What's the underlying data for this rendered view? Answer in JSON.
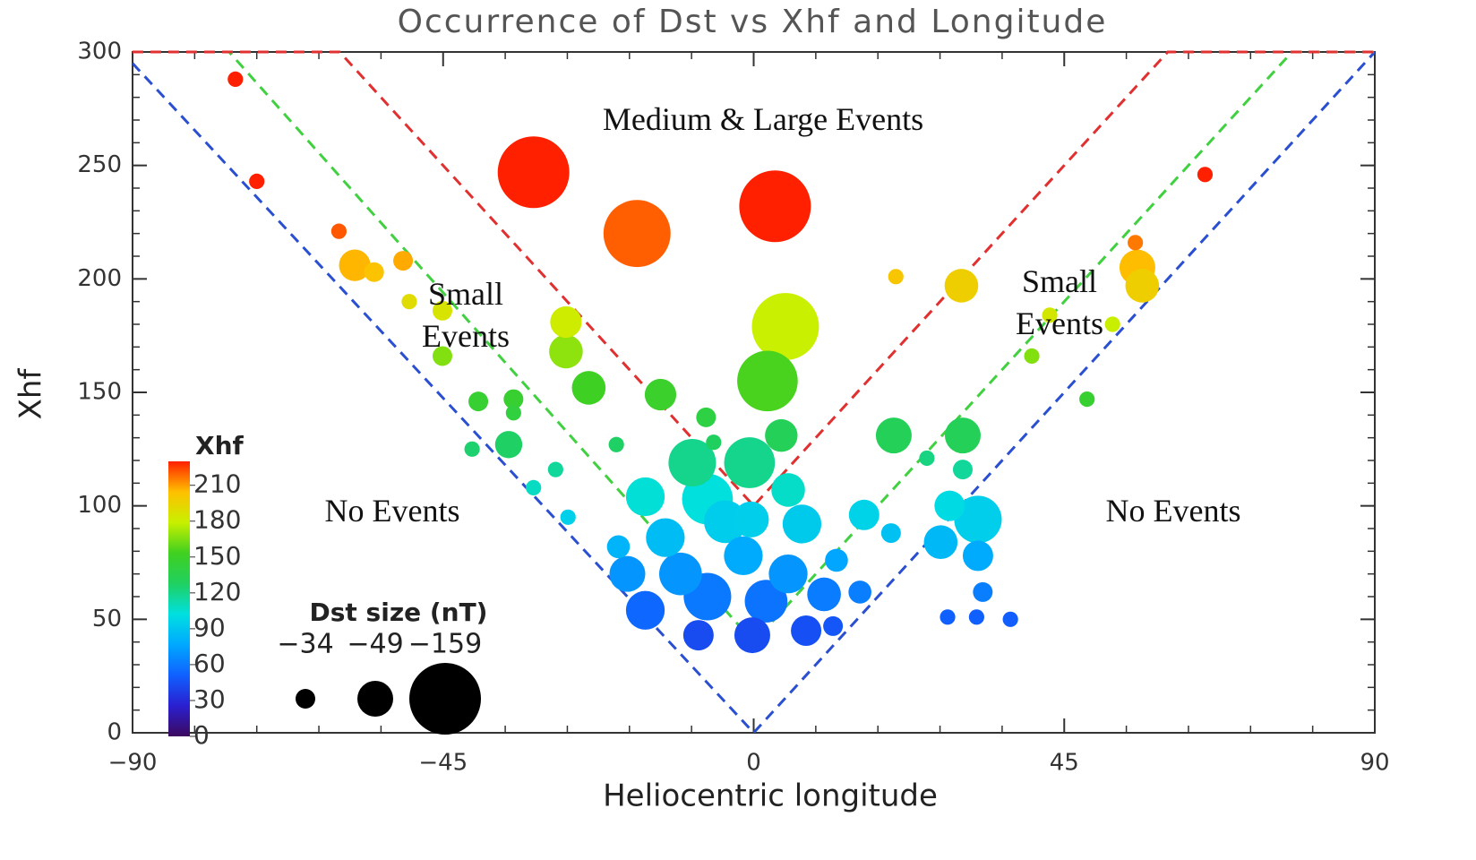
{
  "chart_data": {
    "type": "bubble",
    "title": "Occurrence of Dst vs Xhf and Longitude",
    "x_label": "Heliocentric longitude",
    "y_label": "Xhf",
    "xlim": [
      -90,
      90
    ],
    "xticks": [
      {
        "value": -90,
        "label": "−90"
      },
      {
        "value": -45,
        "label": "−45"
      },
      0,
      45,
      90
    ],
    "ylim": [
      0,
      300
    ],
    "yticks": [
      0,
      50,
      100,
      150,
      200,
      250,
      300
    ],
    "x": [
      -75.1,
      -72,
      -60.1,
      -57.8,
      -55,
      -50.8,
      -49.9,
      -45.1,
      -45.1,
      -39.9,
      -34.8,
      -34.8,
      -35.5,
      -40.8,
      -31.9,
      -28.7,
      -26.9,
      -31.9,
      -16.9,
      3.1,
      -27.2,
      -27.2,
      -23.9,
      -19.9,
      -13.5,
      -6.9,
      -5.8,
      4.6,
      2.0,
      4.0,
      -8.9,
      -0.6,
      -15.7,
      -6.7,
      5,
      -12.8,
      -4.1,
      -0.4,
      7,
      -19.6,
      -18.3,
      -10.6,
      -1.5,
      5,
      12,
      -15.7,
      -6.7,
      1.8,
      10.2,
      15.4,
      -8,
      -0.2,
      7.6,
      11.5,
      16,
      19.9,
      20.6,
      20.3,
      25.1,
      30.1,
      30.3,
      30.3,
      28.4,
      32.5,
      27.1,
      32.5,
      33.2,
      28.1,
      32.3,
      37.2,
      40.3,
      42.9,
      48.3,
      52,
      55.3,
      55.6,
      56.3,
      65.4
    ],
    "y": [
      288,
      243,
      221,
      206,
      203,
      208,
      190,
      186,
      166,
      146,
      147,
      141,
      127,
      125,
      108,
      116,
      95,
      247,
      220,
      232,
      181,
      168,
      152,
      127,
      149,
      139,
      128,
      179,
      155,
      131,
      119,
      119,
      104,
      103,
      107,
      86,
      93,
      94,
      92,
      82,
      70,
      70,
      78,
      70,
      76,
      54,
      60,
      58,
      61,
      62,
      43,
      43,
      45,
      47,
      96,
      88,
      201,
      131,
      121,
      197,
      131,
      116,
      100,
      94,
      84,
      78,
      62,
      51,
      51,
      50,
      166,
      184,
      147,
      180,
      216,
      205,
      197,
      246
    ],
    "sizes": [
      -30,
      -30,
      -30,
      -45,
      -34,
      -34,
      -30,
      -34,
      -34,
      -34,
      -34,
      -30,
      -41,
      -30,
      -30,
      -30,
      -30,
      -159,
      -145,
      -159,
      -45,
      -47,
      -47,
      -30,
      -45,
      -34,
      -30,
      -145,
      -125,
      -46,
      -85,
      -95,
      -58,
      -95,
      -47,
      -58,
      -70,
      -49,
      -58,
      -37,
      -49,
      -70,
      -58,
      -58,
      -37,
      -58,
      -85,
      -70,
      -47,
      -37,
      -44,
      -49,
      -44,
      -34,
      -44,
      -34,
      -30,
      -49,
      -30,
      -47,
      -49,
      -34,
      -44,
      -85,
      -47,
      -44,
      -34,
      -30,
      -30,
      -30,
      -30,
      -30,
      -30,
      -30,
      -30,
      -49,
      -47,
      -30
    ],
    "colorbar": {
      "label": "Xhf",
      "range": [
        0,
        230
      ],
      "ticks": [
        0,
        30,
        60,
        90,
        120,
        150,
        180,
        210
      ],
      "colormap": [
        "#3c0a5e",
        "#2a1fd0",
        "#1060ff",
        "#00a8ff",
        "#00e0e0",
        "#20d060",
        "#40d020",
        "#c8f000",
        "#ffc000",
        "#ff2000"
      ]
    },
    "size_legend": {
      "title": "Dst size (nT)",
      "values": [
        {
          "value": -34,
          "label": "−34"
        },
        {
          "value": -49,
          "label": "−49"
        },
        {
          "value": -159,
          "label": "−159"
        }
      ],
      "color": "#000000"
    },
    "reference_lines": [
      {
        "color": "#2a4fd0",
        "x": [
          -90,
          0,
          90
        ],
        "y": [
          295,
          0,
          300
        ]
      },
      {
        "color": "#40d040",
        "x": [
          -90,
          -76,
          0,
          78,
          90
        ],
        "y": [
          300,
          300,
          40,
          300,
          300
        ]
      },
      {
        "color": "#e03030",
        "x": [
          -90,
          -60,
          0,
          60,
          90
        ],
        "y": [
          300,
          300,
          100,
          300,
          300
        ]
      }
    ],
    "annotations": [
      "Medium & Large Events",
      "Small Events",
      "Small Events",
      "No Events",
      "No Events"
    ]
  }
}
